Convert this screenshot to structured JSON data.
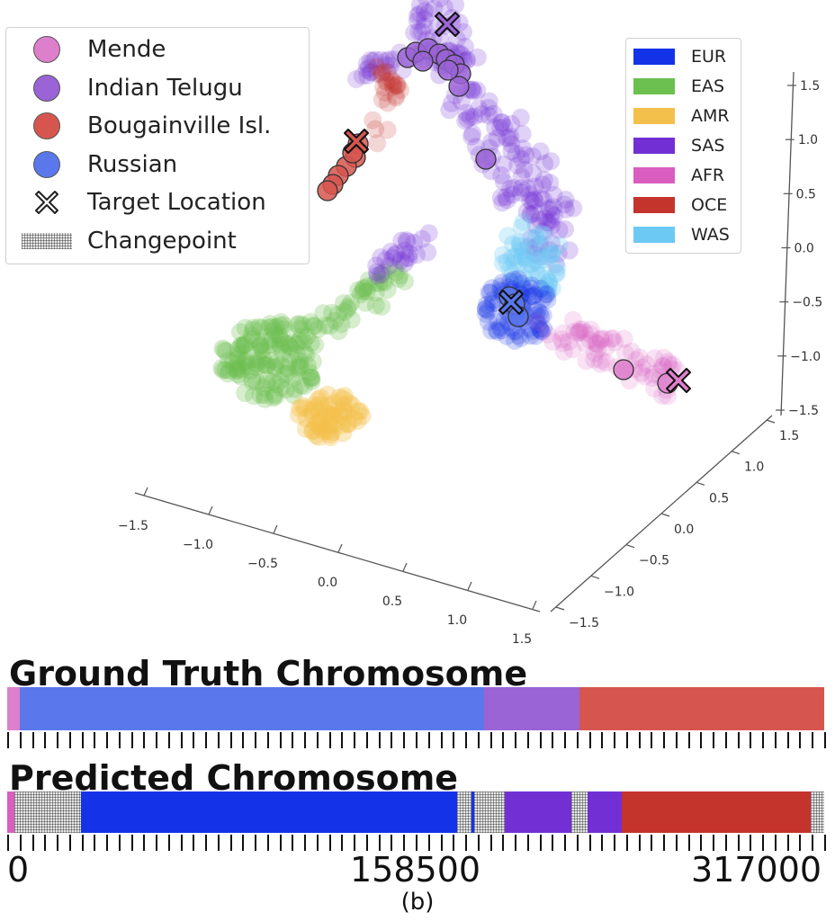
{
  "chart_data": [
    {
      "type": "scatter",
      "subtype": "3d",
      "title": "",
      "xlim": [
        -1.5,
        1.5
      ],
      "ylim": [
        -1.5,
        1.5
      ],
      "zlim": [
        -1.5,
        1.5
      ],
      "x_ticks": [
        "−1.5",
        "−1.0",
        "−0.5",
        "0.0",
        "0.5",
        "1.0",
        "1.5"
      ],
      "y_ticks": [
        "−1.5",
        "−1.0",
        "−0.5",
        "0.0",
        "0.5",
        "1.0",
        "1.5"
      ],
      "z_ticks": [
        "−1.5",
        "−1.0",
        "−0.5",
        "0.0",
        "0.5",
        "1.0",
        "1.5"
      ],
      "legend_populations": [
        {
          "label": "Mende",
          "color": "#de7fcc",
          "symbol": "circle"
        },
        {
          "label": "Indian Telugu",
          "color": "#9a63d6",
          "symbol": "circle"
        },
        {
          "label": "Bougainville Isl.",
          "color": "#d6564f",
          "symbol": "circle"
        },
        {
          "label": "Russian",
          "color": "#5a78ec",
          "symbol": "circle"
        },
        {
          "label": "Target Location",
          "color": "#ffffff",
          "symbol": "x"
        },
        {
          "label": "Changepoint",
          "color": "#bbbbbb",
          "symbol": "hatch"
        }
      ],
      "legend_regions": [
        {
          "label": "EUR",
          "color": "#1433e8"
        },
        {
          "label": "EAS",
          "color": "#6cc04f"
        },
        {
          "label": "AMR",
          "color": "#f3c04b"
        },
        {
          "label": "SAS",
          "color": "#7230d4"
        },
        {
          "label": "AFR",
          "color": "#d95ec0"
        },
        {
          "label": "OCE",
          "color": "#c4342c"
        },
        {
          "label": "WAS",
          "color": "#6cc9f4"
        }
      ],
      "legend_placement": [
        "upper-left",
        "upper-right"
      ]
    },
    {
      "type": "bar",
      "subtype": "segment-track",
      "title": "Ground Truth Chromosome",
      "x_range": [
        0,
        317000
      ],
      "segments": [
        {
          "start": 0,
          "end": 5000,
          "label": "Mende"
        },
        {
          "start": 5000,
          "end": 185000,
          "label": "Russian"
        },
        {
          "start": 185000,
          "end": 222000,
          "label": "Indian Telugu"
        },
        {
          "start": 222000,
          "end": 317000,
          "label": "Bougainville Isl."
        }
      ]
    },
    {
      "type": "bar",
      "subtype": "segment-track",
      "title": "Predicted Chromosome",
      "x_range": [
        0,
        317000
      ],
      "x_tick_labels": [
        "0",
        "158500",
        "317000"
      ],
      "segments": [
        {
          "start": 0,
          "end": 2700,
          "label": "AFR"
        },
        {
          "start": 2700,
          "end": 28600,
          "label": "Changepoint"
        },
        {
          "start": 28600,
          "end": 174500,
          "label": "EUR"
        },
        {
          "start": 174500,
          "end": 180000,
          "label": "Changepoint"
        },
        {
          "start": 180000,
          "end": 181200,
          "label": "EUR"
        },
        {
          "start": 181200,
          "end": 193000,
          "label": "Changepoint"
        },
        {
          "start": 193000,
          "end": 219000,
          "label": "SAS"
        },
        {
          "start": 219000,
          "end": 225300,
          "label": "Changepoint"
        },
        {
          "start": 225300,
          "end": 238300,
          "label": "SAS"
        },
        {
          "start": 238300,
          "end": 311800,
          "label": "OCE"
        },
        {
          "start": 311800,
          "end": 317000,
          "label": "Changepoint"
        }
      ]
    }
  ],
  "caption": "(b)"
}
